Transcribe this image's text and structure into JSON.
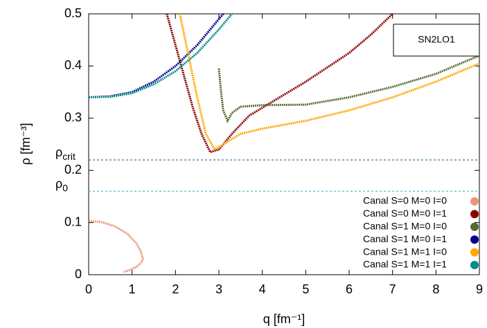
{
  "chart_data": {
    "type": "line",
    "x_label": "q [fm⁻¹]",
    "y_label": "ρ [fm⁻³]",
    "xlim": [
      0,
      9
    ],
    "ylim": [
      0,
      0.5
    ],
    "xticks": [
      0,
      1,
      2,
      3,
      4,
      5,
      6,
      7,
      8,
      9
    ],
    "yticks": [
      0,
      0.1,
      0.2,
      0.3,
      0.4,
      0.5
    ],
    "box_label": "SN2LO1",
    "legend": "bottom-right",
    "hlines": [
      {
        "symbol": "ρ",
        "subscript": "crit",
        "value": 0.22,
        "color": "#2a7fa0"
      },
      {
        "symbol": "ρ",
        "subscript": "0",
        "value": 0.16,
        "color": "#5cc0d0"
      }
    ],
    "series": [
      {
        "name": "Canal S=0 M=0 I=0",
        "color": "#e8967a",
        "x": [
          0,
          0.3,
          0.6,
          0.9,
          1.1,
          1.2,
          1.25,
          1.2,
          1.1,
          0.95,
          0.8
        ],
        "values": [
          0.103,
          0.101,
          0.093,
          0.078,
          0.06,
          0.045,
          0.03,
          0.022,
          0.015,
          0.009,
          0.005
        ]
      },
      {
        "name": "Canal S=0 M=0 I=1",
        "color": "#8b0000",
        "x": [
          1.8,
          2.0,
          2.2,
          2.4,
          2.6,
          2.8,
          3.0,
          3.3,
          3.7,
          4.3,
          5,
          6,
          6.5,
          7
        ],
        "values": [
          0.5,
          0.44,
          0.38,
          0.32,
          0.27,
          0.235,
          0.24,
          0.27,
          0.305,
          0.335,
          0.37,
          0.425,
          0.46,
          0.5
        ]
      },
      {
        "name": "Canal S=1 M=0 I=0",
        "color": "#556b2f",
        "x": [
          3.0,
          3.05,
          3.1,
          3.2,
          3.3,
          3.5,
          4,
          5,
          6,
          7,
          8,
          9
        ],
        "values": [
          0.395,
          0.35,
          0.315,
          0.295,
          0.31,
          0.322,
          0.325,
          0.326,
          0.34,
          0.36,
          0.385,
          0.42
        ]
      },
      {
        "name": "Canal S=1 M=0 I=1",
        "color": "#00008b",
        "x": [
          0,
          0.5,
          1,
          1.5,
          2,
          2.5,
          3,
          3.1
        ],
        "values": [
          0.34,
          0.342,
          0.35,
          0.37,
          0.4,
          0.44,
          0.49,
          0.5
        ]
      },
      {
        "name": "Canal S=1 M=1 I=0",
        "color": "#ffa500",
        "x": [
          2.1,
          2.3,
          2.5,
          2.7,
          2.9,
          3.1,
          3.5,
          4,
          5,
          6,
          7,
          8,
          9
        ],
        "values": [
          0.5,
          0.42,
          0.34,
          0.27,
          0.24,
          0.25,
          0.27,
          0.28,
          0.295,
          0.315,
          0.34,
          0.37,
          0.405
        ]
      },
      {
        "name": "Canal S=1 M=1 I=1",
        "color": "#008b8b",
        "x": [
          0,
          0.5,
          1,
          1.5,
          2,
          2.5,
          3,
          3.3
        ],
        "values": [
          0.34,
          0.341,
          0.348,
          0.365,
          0.39,
          0.425,
          0.47,
          0.5
        ]
      }
    ]
  }
}
